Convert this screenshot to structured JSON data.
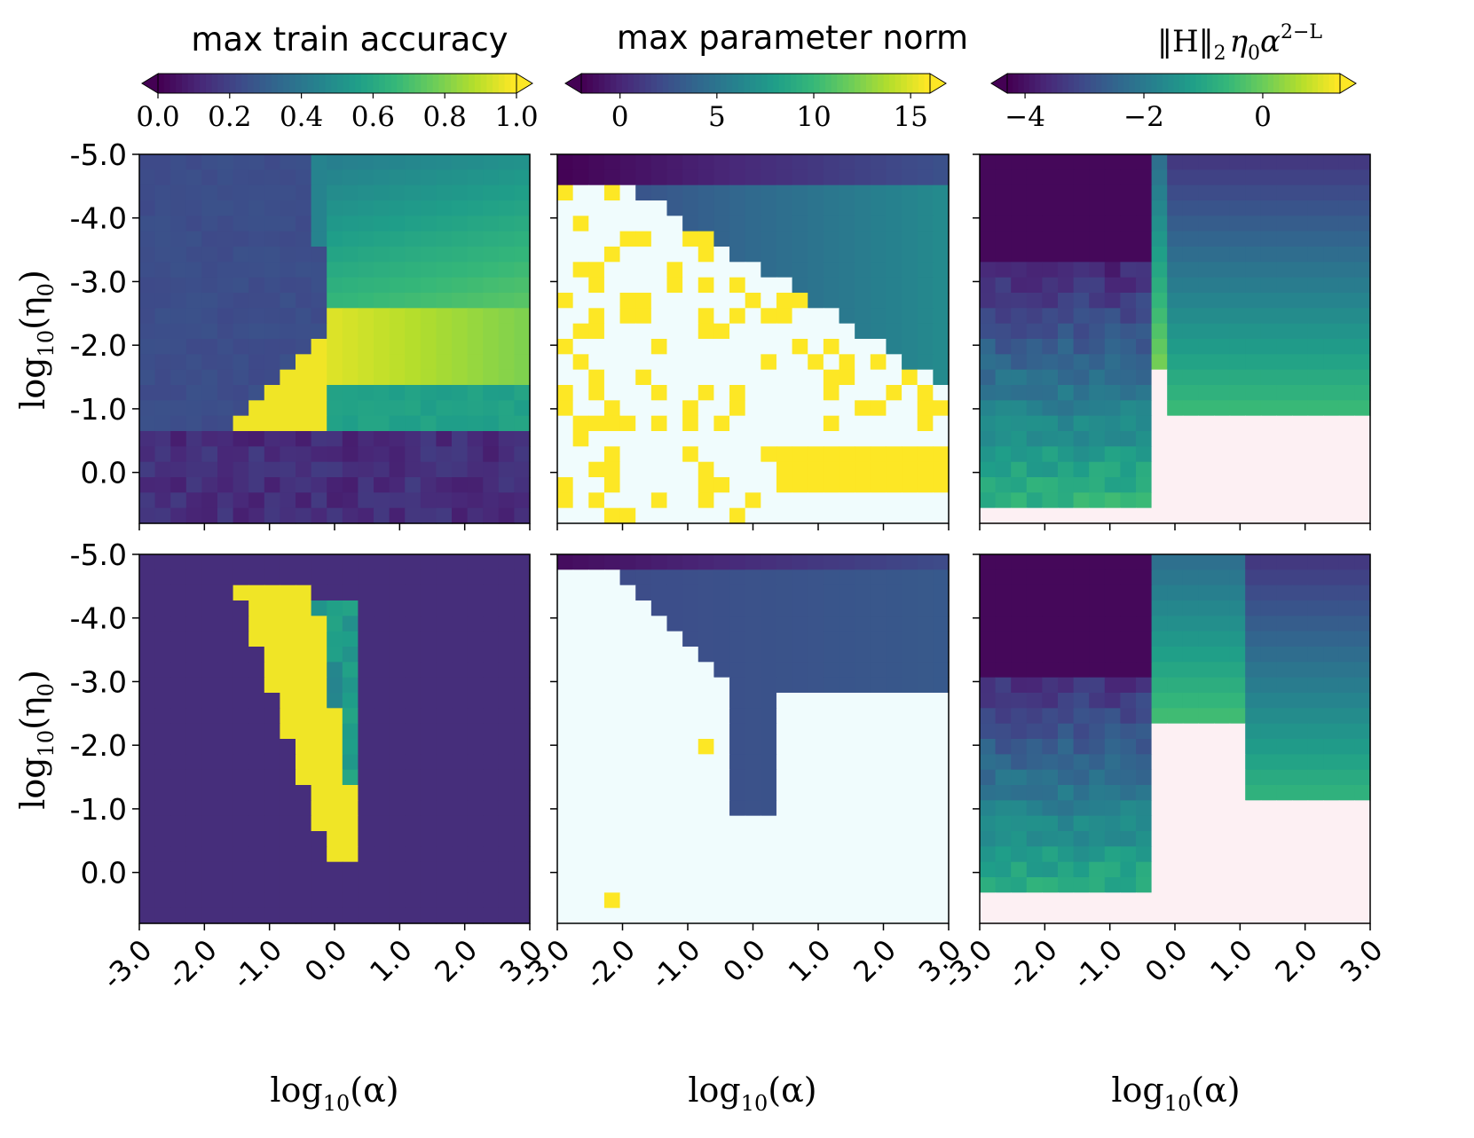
{
  "chart_data": {
    "type": "heatmap",
    "x_axis": {
      "label": "log10(α)",
      "label_parts": {
        "base": "log",
        "sub": "10",
        "arg": "(α)"
      },
      "ticks": [
        -3.0,
        -2.0,
        -1.0,
        0.0,
        1.0,
        2.0,
        3.0
      ],
      "tick_labels": [
        "-3.0",
        "-2.0",
        "-1.0",
        "0.0",
        "1.0",
        "2.0",
        "3.0"
      ],
      "range": [
        -3.0,
        3.0
      ],
      "bins": 25
    },
    "y_axis": {
      "label": "log10(η0)",
      "label_parts": {
        "base": "log",
        "sub": "10",
        "arg": "(η",
        "argsub": "0",
        "close": ")"
      },
      "ticks": [
        -5.0,
        -4.0,
        -3.0,
        -2.0,
        -1.0,
        0.0
      ],
      "tick_labels": [
        "-5.0",
        "-4.0",
        "-3.0",
        "-2.0",
        "-1.0",
        "0.0"
      ],
      "range_top_to_bottom": [
        -5.0,
        0.8
      ],
      "bins": 24
    },
    "columns": [
      {
        "title": "max train accuracy",
        "colormap": "viridis",
        "colorbar": {
          "ticks": [
            0.0,
            0.2,
            0.4,
            0.6,
            0.8,
            1.0
          ],
          "tick_labels": [
            "0.0",
            "0.2",
            "0.4",
            "0.6",
            "0.8",
            "1.0"
          ],
          "range": [
            0.0,
            1.0
          ],
          "extend": "both"
        }
      },
      {
        "title": "max parameter norm",
        "colormap": "viridis",
        "colorbar": {
          "ticks": [
            0,
            5,
            10,
            15
          ],
          "tick_labels": [
            "0",
            "5",
            "10",
            "15"
          ],
          "range": [
            -2.0,
            16.0
          ],
          "extend": "both"
        }
      },
      {
        "title": "‖H‖2 η0 α^(2−L)",
        "title_parts": {
          "norm": "‖H‖",
          "sub": "2",
          "eta": "η",
          "eta_sub": "0",
          "alpha": "α",
          "sup": "2−L"
        },
        "colormap": "viridis",
        "colorbar": {
          "ticks": [
            -4,
            -2,
            0
          ],
          "tick_labels": [
            "−4",
            "−2",
            "0"
          ],
          "range": [
            -4.3,
            1.3
          ],
          "extend": "both"
        }
      }
    ],
    "rows": 2,
    "grid": false,
    "missing_value_colors": {
      "parameter_norm_diverged": "#f0fcfd",
      "curvature_missing": "#fdf0f3",
      "diverged_high": "#fde725"
    }
  }
}
